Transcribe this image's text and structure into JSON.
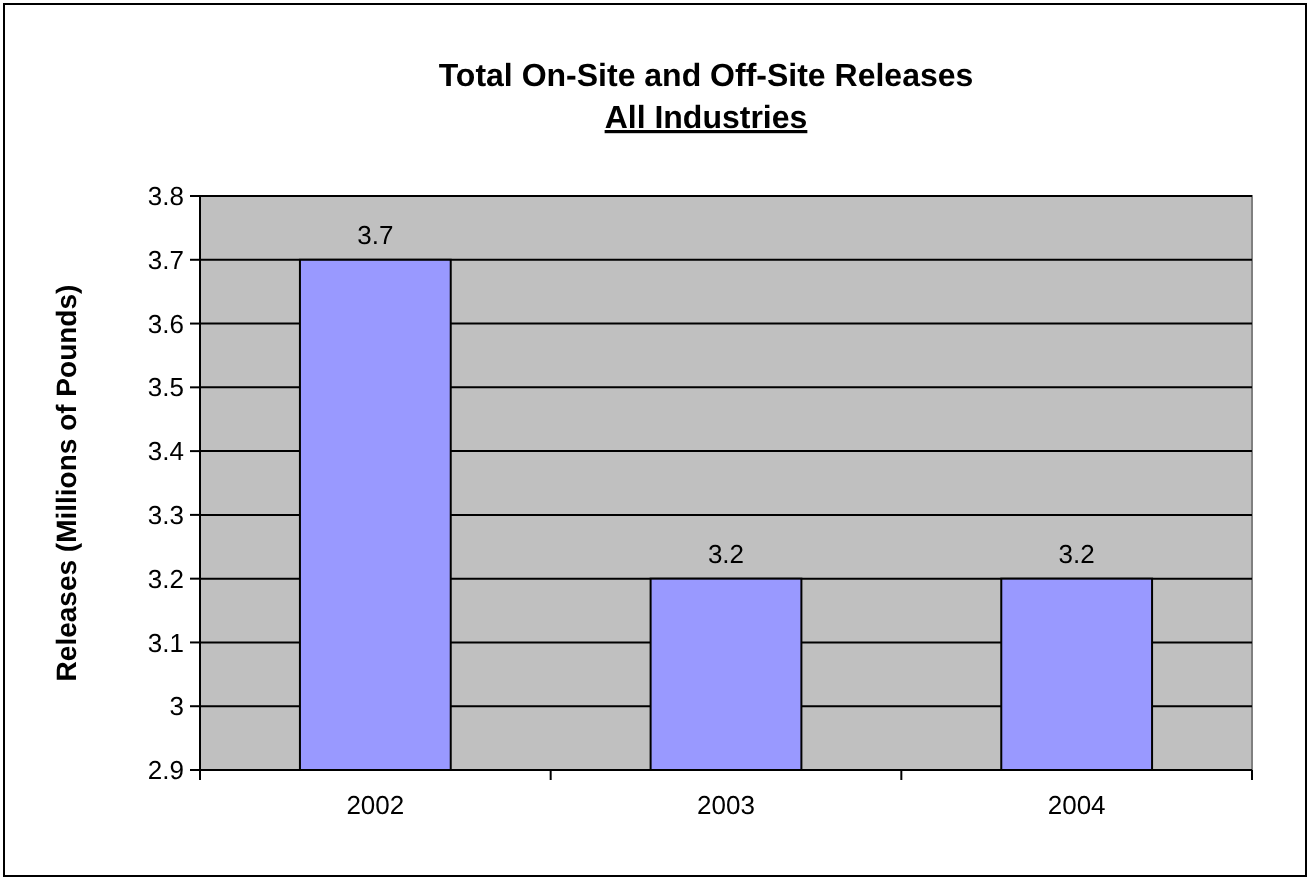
{
  "chart_data": {
    "type": "bar",
    "title": "Total On-Site and Off-Site Releases",
    "subtitle": "All Industries",
    "ylabel": "Releases (Millions of Pounds)",
    "categories": [
      "2002",
      "2003",
      "2004"
    ],
    "values": [
      3.7,
      3.2,
      3.2
    ],
    "color": "#9999ff",
    "ylim": [
      2.9,
      3.8
    ],
    "yticks": [
      2.9,
      3,
      3.1,
      3.2,
      3.3,
      3.4,
      3.5,
      3.6,
      3.7,
      3.8
    ],
    "grid": "y",
    "data_labels": true
  }
}
